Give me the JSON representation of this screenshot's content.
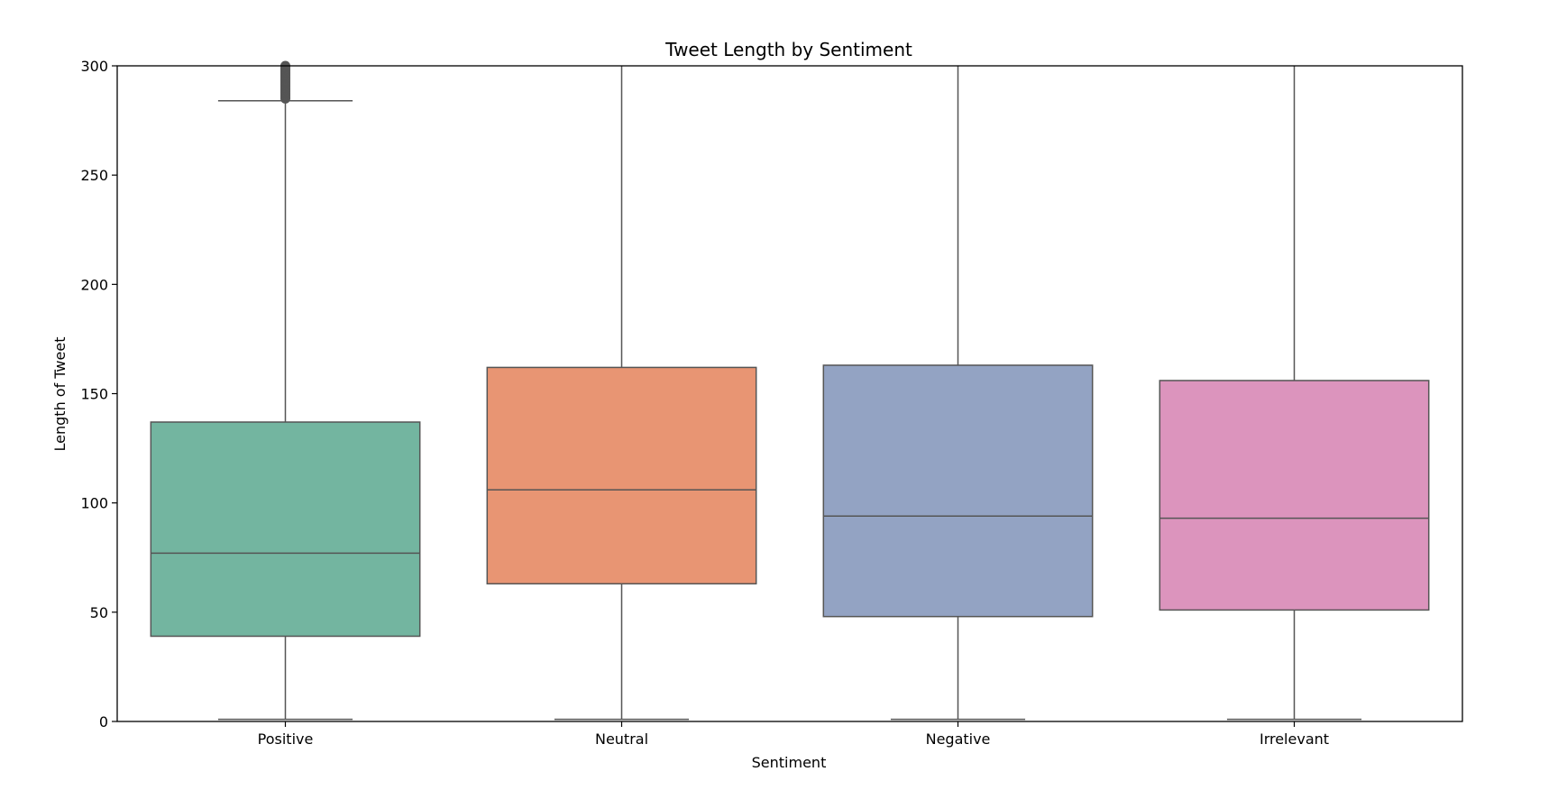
{
  "chart_data": {
    "type": "box",
    "title": "Tweet Length by Sentiment",
    "xlabel": "Sentiment",
    "ylabel": "Length of Tweet",
    "ylim": [
      0,
      300
    ],
    "yticks": [
      0,
      50,
      100,
      150,
      200,
      250,
      300
    ],
    "grid": false,
    "legend": "none",
    "categories": [
      "Positive",
      "Neutral",
      "Negative",
      "Irrelevant"
    ],
    "boxes": [
      {
        "category": "Positive",
        "whisker_low": 1,
        "q1": 39,
        "median": 77,
        "q3": 137,
        "whisker_high": 284,
        "outliers_range": [
          285,
          300
        ],
        "color": "#73b5a0"
      },
      {
        "category": "Neutral",
        "whisker_low": 1,
        "q1": 63,
        "median": 106,
        "q3": 162,
        "whisker_high": 300,
        "outliers_range": null,
        "color": "#e89573"
      },
      {
        "category": "Negative",
        "whisker_low": 1,
        "q1": 48,
        "median": 94,
        "q3": 163,
        "whisker_high": 300,
        "outliers_range": null,
        "color": "#93a3c3"
      },
      {
        "category": "Irrelevant",
        "whisker_low": 1,
        "q1": 51,
        "median": 93,
        "q3": 156,
        "whisker_high": 300,
        "outliers_range": null,
        "color": "#dc94bd"
      }
    ],
    "line_color": "#555555"
  }
}
